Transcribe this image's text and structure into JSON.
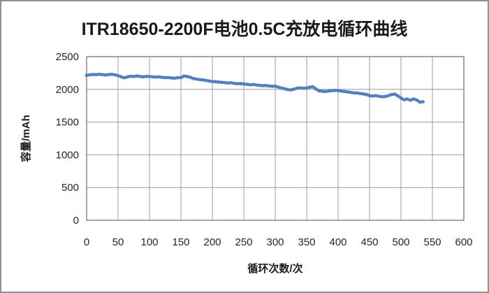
{
  "window": {
    "background_color": "#ffffff",
    "frame_border_color": "#8f8f8f"
  },
  "chart_data": {
    "type": "scatter",
    "title": "ITR18650-2200F电池0.5C充放电循环曲线",
    "xlabel": "循环次数/次",
    "ylabel": "容量/mAh",
    "xlim": [
      0,
      600
    ],
    "ylim": [
      0,
      2500
    ],
    "xticks": [
      0,
      50,
      100,
      150,
      200,
      250,
      300,
      350,
      400,
      450,
      500,
      550,
      600
    ],
    "yticks": [
      0,
      500,
      1000,
      1500,
      2000,
      2500
    ],
    "grid": true,
    "legend": "none",
    "gridline_color": "#9c9c9c",
    "plot_border_color": "#7f7f7f",
    "series": [
      {
        "name": "容量",
        "color": "#4F81BD",
        "points": [
          [
            0,
            2215
          ],
          [
            5,
            2222
          ],
          [
            10,
            2228
          ],
          [
            15,
            2224
          ],
          [
            20,
            2231
          ],
          [
            25,
            2227
          ],
          [
            30,
            2219
          ],
          [
            35,
            2226
          ],
          [
            40,
            2231
          ],
          [
            45,
            2221
          ],
          [
            50,
            2211
          ],
          [
            55,
            2191
          ],
          [
            60,
            2177
          ],
          [
            65,
            2191
          ],
          [
            70,
            2201
          ],
          [
            75,
            2197
          ],
          [
            80,
            2204
          ],
          [
            85,
            2197
          ],
          [
            90,
            2191
          ],
          [
            95,
            2199
          ],
          [
            100,
            2197
          ],
          [
            105,
            2191
          ],
          [
            110,
            2187
          ],
          [
            115,
            2191
          ],
          [
            120,
            2184
          ],
          [
            125,
            2179
          ],
          [
            130,
            2181
          ],
          [
            135,
            2174
          ],
          [
            140,
            2171
          ],
          [
            145,
            2177
          ],
          [
            150,
            2181
          ],
          [
            155,
            2204
          ],
          [
            160,
            2197
          ],
          [
            165,
            2184
          ],
          [
            170,
            2164
          ],
          [
            175,
            2157
          ],
          [
            180,
            2149
          ],
          [
            185,
            2144
          ],
          [
            190,
            2137
          ],
          [
            195,
            2127
          ],
          [
            200,
            2119
          ],
          [
            205,
            2117
          ],
          [
            210,
            2111
          ],
          [
            215,
            2107
          ],
          [
            220,
            2104
          ],
          [
            225,
            2097
          ],
          [
            230,
            2101
          ],
          [
            235,
            2091
          ],
          [
            240,
            2087
          ],
          [
            245,
            2089
          ],
          [
            250,
            2081
          ],
          [
            255,
            2077
          ],
          [
            260,
            2071
          ],
          [
            265,
            2074
          ],
          [
            270,
            2067
          ],
          [
            275,
            2061
          ],
          [
            280,
            2057
          ],
          [
            285,
            2059
          ],
          [
            290,
            2051
          ],
          [
            295,
            2047
          ],
          [
            300,
            2049
          ],
          [
            305,
            2034
          ],
          [
            310,
            2021
          ],
          [
            315,
            2007
          ],
          [
            320,
            1997
          ],
          [
            325,
            1991
          ],
          [
            330,
            2004
          ],
          [
            335,
            2017
          ],
          [
            340,
            2024
          ],
          [
            345,
            2017
          ],
          [
            350,
            2021
          ],
          [
            355,
            2034
          ],
          [
            360,
            2039
          ],
          [
            365,
            2004
          ],
          [
            370,
            1977
          ],
          [
            375,
            1971
          ],
          [
            380,
            1967
          ],
          [
            385,
            1974
          ],
          [
            390,
            1979
          ],
          [
            395,
            1984
          ],
          [
            400,
            1981
          ],
          [
            405,
            1974
          ],
          [
            410,
            1967
          ],
          [
            415,
            1961
          ],
          [
            420,
            1954
          ],
          [
            425,
            1947
          ],
          [
            430,
            1944
          ],
          [
            435,
            1937
          ],
          [
            440,
            1929
          ],
          [
            445,
            1921
          ],
          [
            450,
            1904
          ],
          [
            455,
            1897
          ],
          [
            460,
            1904
          ],
          [
            465,
            1894
          ],
          [
            470,
            1887
          ],
          [
            475,
            1891
          ],
          [
            480,
            1904
          ],
          [
            485,
            1921
          ],
          [
            490,
            1927
          ],
          [
            495,
            1901
          ],
          [
            500,
            1867
          ],
          [
            505,
            1841
          ],
          [
            510,
            1851
          ],
          [
            515,
            1834
          ],
          [
            520,
            1854
          ],
          [
            525,
            1837
          ],
          [
            530,
            1804
          ],
          [
            535,
            1811
          ]
        ]
      }
    ]
  }
}
